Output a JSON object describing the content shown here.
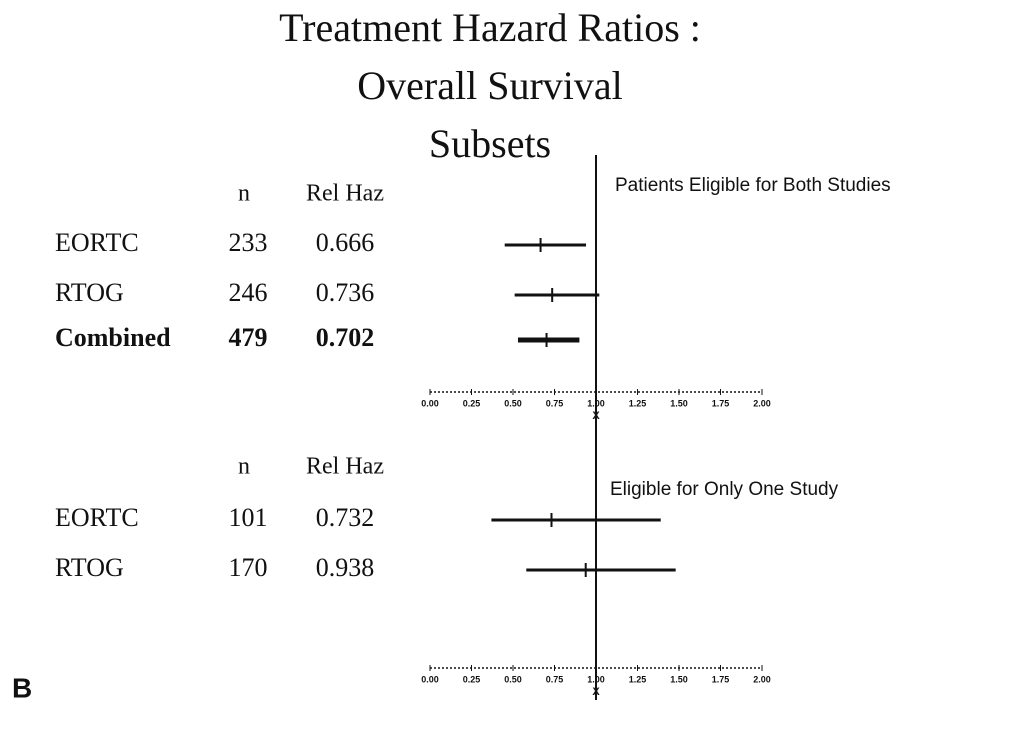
{
  "title": [
    "Treatment Hazard Ratios :",
    "Overall Survival",
    "Subsets"
  ],
  "panel_label": "B",
  "chart_data": [
    {
      "type": "forest",
      "subtitle": "Patients Eligible for Both Studies",
      "column_headers": [
        "n",
        "Rel Haz"
      ],
      "categories": [
        "EORTC",
        "RTOG",
        "Combined"
      ],
      "n": [
        233,
        246,
        479
      ],
      "values": [
        0.666,
        0.736,
        0.702
      ],
      "ci_low": [
        0.45,
        0.51,
        0.53
      ],
      "ci_high": [
        0.94,
        1.02,
        0.9
      ],
      "bold": [
        false,
        false,
        true
      ],
      "reference_line": 1,
      "xlim": [
        0,
        2
      ],
      "xticks": [
        {
          "value": 0,
          "label": "0.00"
        },
        {
          "value": 0.25,
          "label": "0.25"
        },
        {
          "value": 0.5,
          "label": "0.50"
        },
        {
          "value": 0.75,
          "label": "0.75"
        },
        {
          "value": 1,
          "label": "1.00"
        },
        {
          "value": 1.25,
          "label": "1.25"
        },
        {
          "value": 1.5,
          "label": "1.50"
        },
        {
          "value": 1.75,
          "label": "1.75"
        },
        {
          "value": 2,
          "label": "2.00"
        }
      ],
      "xlabel": "X",
      "color": "#111111"
    },
    {
      "type": "forest",
      "subtitle": "Eligible for Only One Study",
      "column_headers": [
        "n",
        "Rel Haz"
      ],
      "categories": [
        "EORTC",
        "RTOG"
      ],
      "n": [
        101,
        170
      ],
      "values": [
        0.732,
        0.938
      ],
      "ci_low": [
        0.37,
        0.58
      ],
      "ci_high": [
        1.39,
        1.48
      ],
      "bold": [
        false,
        false
      ],
      "reference_line": 1,
      "xlim": [
        0,
        2
      ],
      "xticks": [
        {
          "value": 0,
          "label": "0.00"
        },
        {
          "value": 0.25,
          "label": "0.25"
        },
        {
          "value": 0.5,
          "label": "0.50"
        },
        {
          "value": 0.75,
          "label": "0.75"
        },
        {
          "value": 1,
          "label": "1.00"
        },
        {
          "value": 1.25,
          "label": "1.25"
        },
        {
          "value": 1.5,
          "label": "1.50"
        },
        {
          "value": 1.75,
          "label": "1.75"
        },
        {
          "value": 2,
          "label": "2.00"
        }
      ],
      "xlabel": "X",
      "color": "#111111"
    }
  ]
}
